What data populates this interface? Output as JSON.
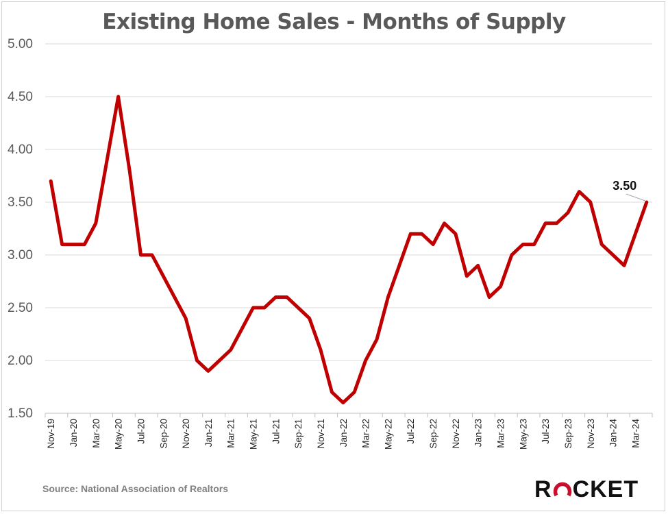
{
  "chart_data": {
    "type": "line",
    "title": "Existing Home Sales - Months of Supply",
    "xlabel": "",
    "ylabel": "",
    "ylim": [
      1.5,
      5.0
    ],
    "yticks": [
      "1.50",
      "2.00",
      "2.50",
      "3.00",
      "3.50",
      "4.00",
      "4.50",
      "5.00"
    ],
    "ytick_values": [
      1.5,
      2.0,
      2.5,
      3.0,
      3.5,
      4.0,
      4.5,
      5.0
    ],
    "grid": true,
    "x": [
      "Nov-19",
      "Dec-19",
      "Jan-20",
      "Feb-20",
      "Mar-20",
      "Apr-20",
      "May-20",
      "Jun-20",
      "Jul-20",
      "Aug-20",
      "Sep-20",
      "Oct-20",
      "Nov-20",
      "Dec-20",
      "Jan-21",
      "Feb-21",
      "Mar-21",
      "Apr-21",
      "May-21",
      "Jun-21",
      "Jul-21",
      "Aug-21",
      "Sep-21",
      "Oct-21",
      "Nov-21",
      "Dec-21",
      "Jan-22",
      "Feb-22",
      "Mar-22",
      "Apr-22",
      "May-22",
      "Jun-22",
      "Jul-22",
      "Aug-22",
      "Sep-22",
      "Oct-22",
      "Nov-22",
      "Dec-22",
      "Jan-23",
      "Feb-23",
      "Mar-23",
      "Apr-23",
      "May-23",
      "Jun-23",
      "Jul-23",
      "Aug-23",
      "Sep-23",
      "Oct-23",
      "Nov-23",
      "Dec-23",
      "Jan-24",
      "Feb-24",
      "Mar-24",
      "Apr-24"
    ],
    "xtick_labels": [
      "Nov-19",
      "Jan-20",
      "Mar-20",
      "May-20",
      "Jul-20",
      "Sep-20",
      "Nov-20",
      "Jan-21",
      "Mar-21",
      "May-21",
      "Jul-21",
      "Sep-21",
      "Nov-21",
      "Jan-22",
      "Mar-22",
      "May-22",
      "Jul-22",
      "Sep-22",
      "Nov-22",
      "Jan-23",
      "Mar-23",
      "May-23",
      "Jul-23",
      "Sep-23",
      "Nov-23",
      "Jan-24",
      "Mar-24"
    ],
    "series": [
      {
        "color": "#c00000",
        "values": [
          3.7,
          3.1,
          3.1,
          3.1,
          3.3,
          3.9,
          4.5,
          3.8,
          3.0,
          3.0,
          2.8,
          2.6,
          2.4,
          2.0,
          1.9,
          2.0,
          2.1,
          2.3,
          2.5,
          2.5,
          2.6,
          2.6,
          2.5,
          2.4,
          2.1,
          1.7,
          1.6,
          1.7,
          2.0,
          2.2,
          2.6,
          2.9,
          3.2,
          3.2,
          3.1,
          3.3,
          3.2,
          2.8,
          2.9,
          2.6,
          2.7,
          3.0,
          3.1,
          3.1,
          3.3,
          3.3,
          3.4,
          3.6,
          3.5,
          3.1,
          3.0,
          2.9,
          3.2,
          3.5
        ]
      }
    ],
    "annotations": [
      {
        "text": "3.50",
        "x": "Apr-24",
        "y": 3.5
      }
    ],
    "source": "Source: National Association of Realtors"
  },
  "brand": {
    "left": "R",
    "right": "CKET",
    "accent_color": "#c8102e"
  }
}
